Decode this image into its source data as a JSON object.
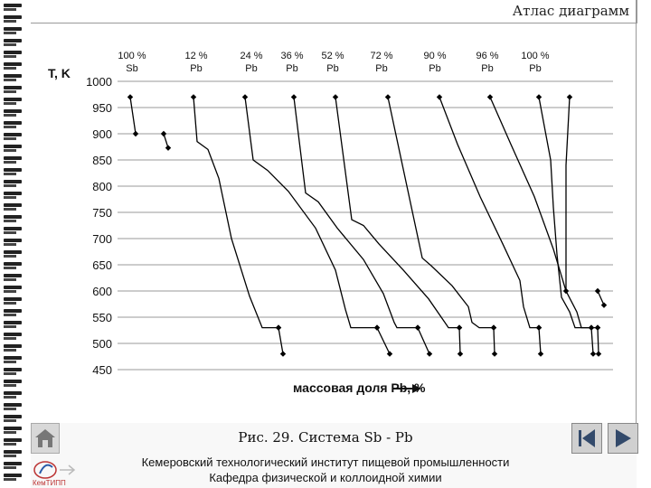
{
  "header": {
    "title": "Атлас диаграмм"
  },
  "chart_data": {
    "type": "line",
    "ylabel": "T, K",
    "xlabel": "массовая доля Pb, %",
    "ylim": [
      450,
      1000
    ],
    "yticks": [
      1000,
      950,
      900,
      850,
      800,
      750,
      700,
      650,
      600,
      550,
      500,
      450
    ],
    "grid": "horizontal",
    "series_labels": [
      {
        "pct": "100 %",
        "el": "Sb"
      },
      {
        "pct": "12 %",
        "el": "Pb"
      },
      {
        "pct": "24 %",
        "el": "Pb"
      },
      {
        "pct": "36 %",
        "el": "Pb"
      },
      {
        "pct": "52 %",
        "el": "Pb"
      },
      {
        "pct": "72 %",
        "el": "Pb"
      },
      {
        "pct": "90 %",
        "el": "Pb"
      },
      {
        "pct": "96 %",
        "el": "Pb"
      },
      {
        "pct": "100 %",
        "el": "Pb"
      }
    ],
    "series": [
      {
        "name": "100 % Sb",
        "points": [
          [
            0,
            970
          ],
          [
            1,
            900
          ]
        ]
      },
      {
        "name": "100 % Sb (cont.)",
        "points": [
          [
            2,
            900
          ],
          [
            3,
            873
          ]
        ]
      },
      {
        "name": "12 % Pb",
        "points": [
          [
            0,
            970
          ],
          [
            1,
            885
          ],
          [
            2,
            870
          ],
          [
            3,
            815
          ],
          [
            4,
            700
          ],
          [
            5,
            590
          ],
          [
            6,
            530
          ],
          [
            7,
            530
          ]
        ]
      },
      {
        "name": "12 % Pb (end)",
        "points": [
          [
            0,
            530
          ],
          [
            1,
            480
          ]
        ]
      },
      {
        "name": "24 % Pb",
        "points": [
          [
            0,
            970
          ],
          [
            1,
            850
          ],
          [
            2,
            830
          ],
          [
            3,
            790
          ],
          [
            4,
            720
          ],
          [
            5,
            640
          ],
          [
            6,
            565
          ],
          [
            7,
            530
          ],
          [
            8,
            530
          ]
        ]
      },
      {
        "name": "24 % Pb (end)",
        "points": [
          [
            0,
            530
          ],
          [
            1,
            480
          ]
        ]
      },
      {
        "name": "36 % Pb",
        "points": [
          [
            0,
            970
          ],
          [
            1,
            787
          ],
          [
            2,
            770
          ],
          [
            3,
            720
          ],
          [
            4,
            660
          ],
          [
            5,
            595
          ],
          [
            6,
            540
          ],
          [
            7,
            530
          ],
          [
            8,
            530
          ]
        ]
      },
      {
        "name": "36 % Pb (end)",
        "points": [
          [
            0,
            530
          ],
          [
            1,
            480
          ]
        ]
      },
      {
        "name": "52 % Pb",
        "points": [
          [
            0,
            970
          ],
          [
            1,
            736
          ],
          [
            2,
            725
          ],
          [
            3,
            690
          ],
          [
            4,
            640
          ],
          [
            5,
            585
          ],
          [
            6,
            540
          ],
          [
            7,
            530
          ],
          [
            8,
            530
          ]
        ]
      },
      {
        "name": "52 % Pb (end)",
        "points": [
          [
            0,
            530
          ],
          [
            1,
            480
          ]
        ]
      },
      {
        "name": "72 % Pb",
        "points": [
          [
            0,
            970
          ],
          [
            1,
            663
          ],
          [
            2,
            648
          ],
          [
            3,
            610
          ],
          [
            4,
            570
          ],
          [
            5,
            540
          ],
          [
            6,
            530
          ],
          [
            7,
            530
          ]
        ]
      },
      {
        "name": "72 % Pb (end)",
        "points": [
          [
            0,
            530
          ],
          [
            1,
            480
          ]
        ]
      },
      {
        "name": "90 % Pb",
        "points": [
          [
            0,
            970
          ],
          [
            1,
            880
          ],
          [
            2,
            780
          ],
          [
            3,
            690
          ],
          [
            4,
            620
          ],
          [
            5,
            570
          ],
          [
            6,
            530
          ],
          [
            7,
            530
          ]
        ]
      },
      {
        "name": "90 % Pb (end)",
        "points": [
          [
            0,
            530
          ],
          [
            1,
            480
          ]
        ]
      },
      {
        "name": "96 % Pb",
        "points": [
          [
            0,
            970
          ],
          [
            1,
            880
          ],
          [
            2,
            780
          ],
          [
            3,
            680
          ],
          [
            4,
            600
          ],
          [
            5,
            560
          ],
          [
            6,
            530
          ],
          [
            7,
            530
          ]
        ]
      },
      {
        "name": "96 % Pb (end)",
        "points": [
          [
            0,
            530
          ],
          [
            1,
            480
          ]
        ]
      },
      {
        "name": "100 % Pb",
        "points": [
          [
            0,
            970
          ],
          [
            1,
            850
          ],
          [
            2,
            760
          ],
          [
            3,
            670
          ],
          [
            4,
            588
          ],
          [
            5,
            560
          ],
          [
            6,
            530
          ],
          [
            7,
            530
          ]
        ]
      },
      {
        "name": "100 % Pb (end)",
        "points": [
          [
            0,
            530
          ],
          [
            1,
            480
          ]
        ]
      },
      {
        "name": "100 % Pb (top)",
        "points": [
          [
            0,
            970
          ],
          [
            1,
            840
          ],
          [
            2,
            720
          ],
          [
            3,
            600
          ]
        ]
      },
      {
        "name": "100 % Pb (tail)",
        "points": [
          [
            0,
            600
          ],
          [
            1,
            573
          ]
        ]
      }
    ]
  },
  "caption": "Рис. 29. Система Sb - Pb",
  "institute": {
    "line1": "Кемеровский технологический институт пищевой промышленности",
    "line2": "Кафедра физической и коллоидной химии"
  },
  "logo_text": "КемТИПП",
  "icons": {
    "home": "home-icon",
    "prev": "prev-icon",
    "next": "next-icon"
  }
}
